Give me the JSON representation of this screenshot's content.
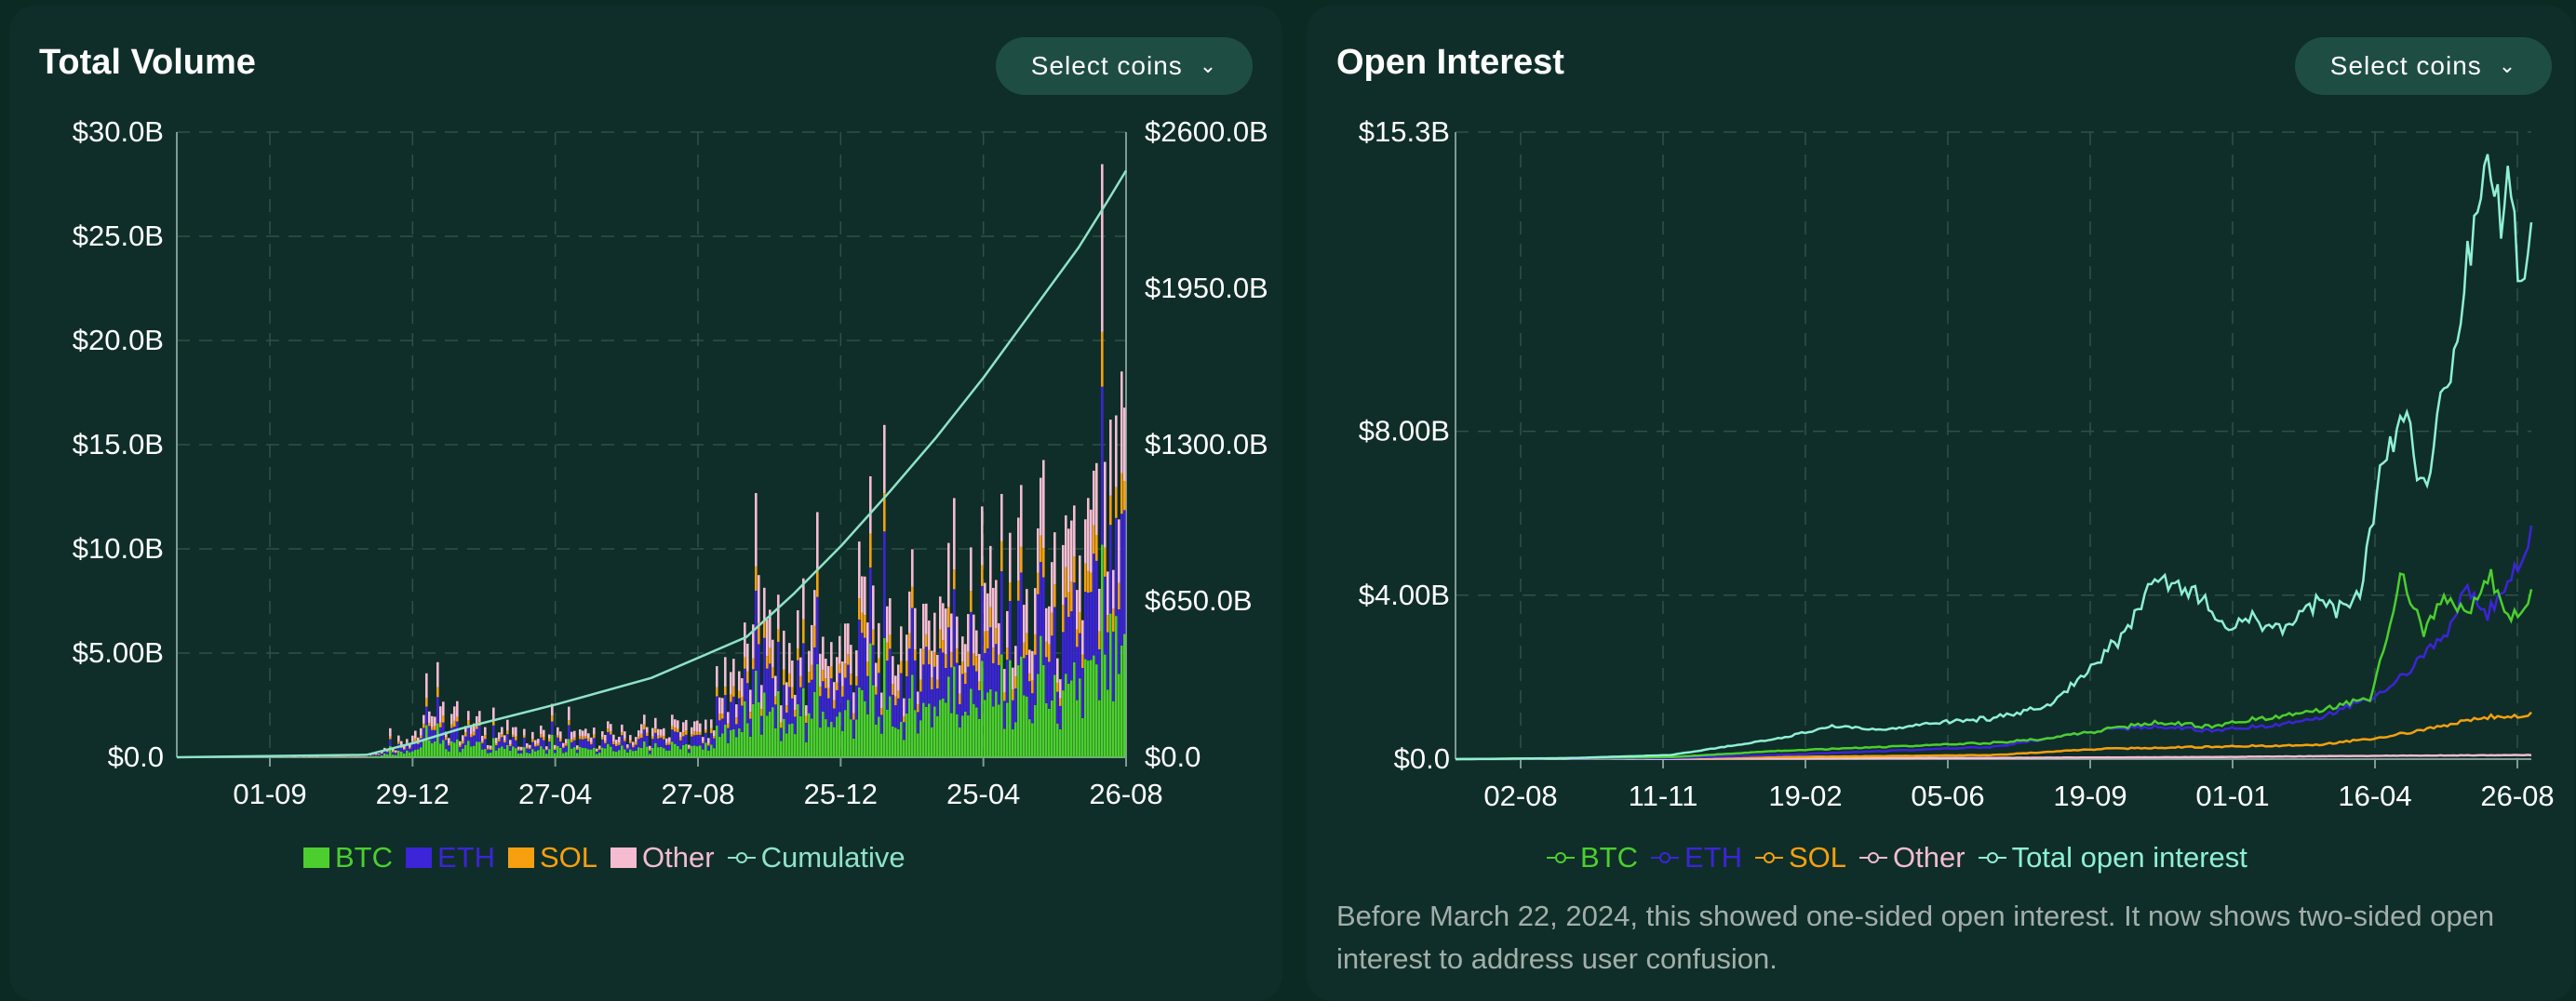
{
  "colors": {
    "btc": "#4ccf2e",
    "eth": "#3c24d8",
    "sol": "#f7a00f",
    "other": "#f5bcd1",
    "cumulative": "#8fe3c8",
    "total": "#8ff0d4",
    "grid": "#2f5049",
    "axis": "#7f9a93"
  },
  "volume": {
    "title": "Total Volume",
    "select_label": "Select coins",
    "legend": {
      "btc": "BTC",
      "eth": "ETH",
      "sol": "SOL",
      "other": "Other",
      "cumulative": "Cumulative"
    }
  },
  "open_interest": {
    "title": "Open Interest",
    "select_label": "Select coins",
    "legend": {
      "btc": "BTC",
      "eth": "ETH",
      "sol": "SOL",
      "other": "Other",
      "total": "Total open interest"
    },
    "note": "Before March 22, 2024, this showed one-sided open interest. It now shows two-sided open interest to address user confusion."
  },
  "chart_data": [
    {
      "type": "bar",
      "title": "Total Volume",
      "stacked": true,
      "ylim": [
        0,
        30
      ],
      "y_ticks": [
        0,
        5,
        10,
        15,
        20,
        25,
        30
      ],
      "y_tick_labels": [
        "$0.0",
        "$5.00B",
        "$10.0B",
        "$15.0B",
        "$20.0B",
        "$25.0B",
        "$30.0B"
      ],
      "y2lim": [
        0,
        2600
      ],
      "y2_ticks": [
        0,
        650,
        1300,
        1950,
        2600
      ],
      "y2_tick_labels": [
        "$0.0",
        "$650.0B",
        "$1300.0B",
        "$1950.0B",
        "$2600.0B"
      ],
      "x_ticks": [
        "01-09",
        "29-12",
        "27-04",
        "27-08",
        "25-12",
        "25-04",
        "26-08"
      ],
      "envelope_x": [
        0,
        0.2,
        0.22,
        0.25,
        0.28,
        0.33,
        0.36,
        0.4,
        0.44,
        0.48,
        0.52,
        0.56,
        0.58,
        0.6,
        0.62,
        0.64,
        0.67,
        0.7,
        0.73,
        0.75,
        0.78,
        0.8,
        0.82,
        0.85,
        0.88,
        0.9,
        0.92,
        0.94,
        0.96,
        0.98,
        1
      ],
      "envelope_total": [
        0,
        0.05,
        0.5,
        1.2,
        2,
        1.2,
        1,
        1,
        1,
        1.2,
        1.2,
        1.5,
        4,
        4.5,
        5.5,
        4.5,
        5,
        5,
        6.5,
        5,
        6.5,
        7,
        8,
        7,
        8,
        7,
        8,
        8,
        9,
        11,
        12
      ],
      "series": [
        {
          "name": "BTC",
          "share": 0.35
        },
        {
          "name": "ETH",
          "share": 0.3
        },
        {
          "name": "SOL",
          "share": 0.1
        },
        {
          "name": "Other",
          "share": 0.25
        }
      ],
      "cumulative": {
        "name": "Cumulative",
        "x": [
          0,
          0.2,
          0.25,
          0.3,
          0.4,
          0.5,
          0.6,
          0.65,
          0.7,
          0.75,
          0.8,
          0.85,
          0.9,
          0.95,
          0.98,
          1
        ],
        "values": [
          0,
          10,
          60,
          120,
          220,
          330,
          500,
          680,
          880,
          1100,
          1330,
          1580,
          1850,
          2120,
          2310,
          2440
        ]
      },
      "legend": [
        "BTC",
        "ETH",
        "SOL",
        "Other",
        "Cumulative"
      ]
    },
    {
      "type": "line",
      "title": "Open Interest",
      "ylim": [
        0,
        15.3
      ],
      "y_ticks": [
        0,
        4,
        8,
        15.3
      ],
      "y_tick_labels": [
        "$0.0",
        "$4.00B",
        "$8.00B",
        "$15.3B"
      ],
      "x_ticks": [
        "02-08",
        "11-11",
        "19-02",
        "05-06",
        "19-09",
        "01-01",
        "16-04",
        "26-08"
      ],
      "series": [
        {
          "name": "Total open interest",
          "x": [
            0,
            0.1,
            0.2,
            0.25,
            0.3,
            0.35,
            0.4,
            0.45,
            0.5,
            0.55,
            0.58,
            0.62,
            0.65,
            0.68,
            0.7,
            0.72,
            0.74,
            0.76,
            0.78,
            0.8,
            0.82,
            0.84,
            0.86,
            0.88,
            0.9,
            0.92,
            0.94,
            0.95,
            0.96,
            0.97,
            0.98,
            0.99,
            1
          ],
          "values": [
            0,
            0.02,
            0.1,
            0.3,
            0.5,
            0.8,
            0.7,
            0.9,
            1,
            1.3,
            2,
            3,
            4.3,
            4.2,
            3.7,
            3.2,
            3.5,
            3.1,
            3.3,
            3.8,
            3.6,
            4,
            7,
            8.5,
            6.5,
            9,
            12,
            14,
            15.3,
            13,
            14.5,
            11,
            13
          ]
        },
        {
          "name": "BTC",
          "x": [
            0,
            0.2,
            0.3,
            0.4,
            0.5,
            0.55,
            0.6,
            0.65,
            0.7,
            0.75,
            0.8,
            0.85,
            0.88,
            0.9,
            0.92,
            0.94,
            0.96,
            0.98,
            1
          ],
          "values": [
            0,
            0.05,
            0.2,
            0.3,
            0.4,
            0.5,
            0.7,
            0.9,
            0.8,
            1,
            1.2,
            1.5,
            4.5,
            3,
            4,
            3.5,
            4.5,
            3.5,
            4
          ]
        },
        {
          "name": "ETH",
          "x": [
            0,
            0.2,
            0.3,
            0.4,
            0.5,
            0.6,
            0.65,
            0.7,
            0.75,
            0.8,
            0.85,
            0.88,
            0.9,
            0.92,
            0.94,
            0.96,
            0.98,
            1
          ],
          "values": [
            0,
            0.03,
            0.1,
            0.2,
            0.3,
            0.7,
            0.8,
            0.7,
            0.8,
            1,
            1.5,
            2,
            2.5,
            3,
            4.2,
            3.5,
            4.5,
            5.5
          ]
        },
        {
          "name": "SOL",
          "x": [
            0,
            0.3,
            0.5,
            0.6,
            0.7,
            0.8,
            0.85,
            0.9,
            0.95,
            1
          ],
          "values": [
            0,
            0.05,
            0.1,
            0.25,
            0.3,
            0.35,
            0.5,
            0.7,
            1,
            1.1
          ]
        },
        {
          "name": "Other",
          "x": [
            0,
            0.5,
            0.7,
            0.85,
            1
          ],
          "values": [
            0,
            0.03,
            0.05,
            0.08,
            0.1
          ]
        }
      ],
      "legend": [
        "BTC",
        "ETH",
        "SOL",
        "Other",
        "Total open interest"
      ]
    }
  ]
}
